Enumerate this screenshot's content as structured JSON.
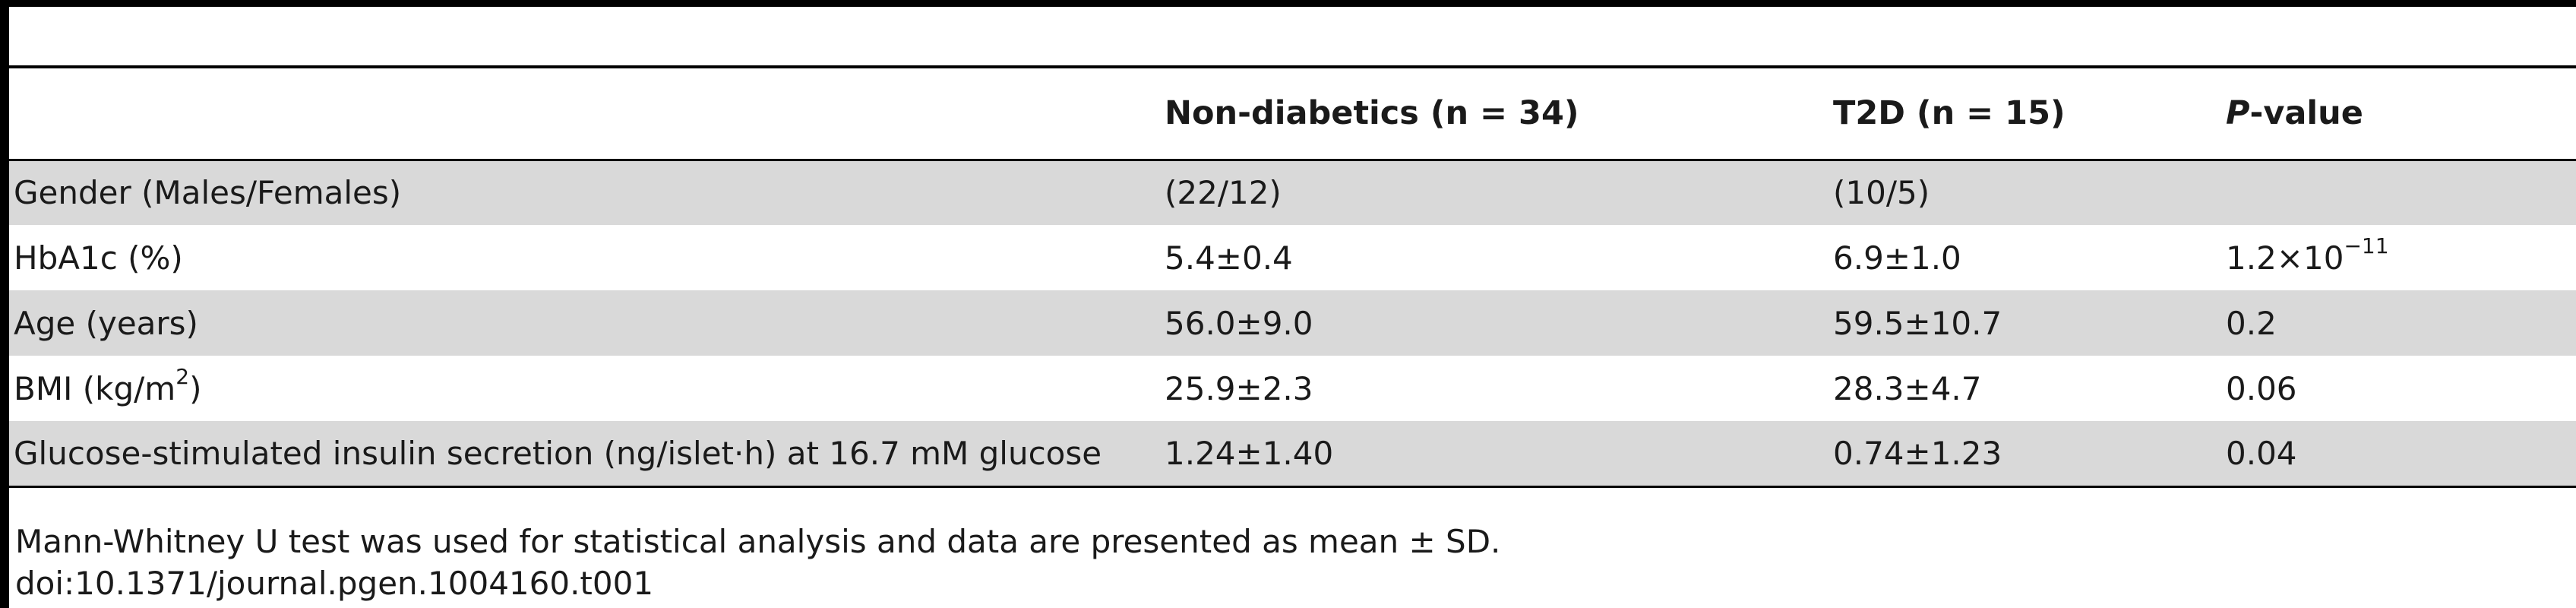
{
  "table": {
    "headers": {
      "characteristic": "",
      "non_diabetics": "Non-diabetics (n = 34)",
      "t2d": "T2D (n = 15)",
      "p_italic": "P",
      "p_rest": "-value"
    },
    "rows": [
      {
        "label": "Gender (Males/Females)",
        "label_sup": "",
        "label_after": "",
        "non_diabetics": "(22/12)",
        "t2d": "(10/5)",
        "p_value": "",
        "p_sup": ""
      },
      {
        "label": "HbA1c (%)",
        "label_sup": "",
        "label_after": "",
        "non_diabetics": "5.4±0.4",
        "t2d": "6.9±1.0",
        "p_value": "1.2×10",
        "p_sup": "−11"
      },
      {
        "label": "Age (years)",
        "label_sup": "",
        "label_after": "",
        "non_diabetics": "56.0±9.0",
        "t2d": "59.5±10.7",
        "p_value": "0.2",
        "p_sup": ""
      },
      {
        "label": "BMI (kg/m",
        "label_sup": "2",
        "label_after": ")",
        "non_diabetics": "25.9±2.3",
        "t2d": "28.3±4.7",
        "p_value": "0.06",
        "p_sup": ""
      },
      {
        "label": "Glucose-stimulated insulin secretion (ng/islet·h) at 16.7 mM glucose",
        "label_sup": "",
        "label_after": "",
        "non_diabetics": "1.24±1.40",
        "t2d": "0.74±1.23",
        "p_value": "0.04",
        "p_sup": ""
      }
    ]
  },
  "footnote": "Mann-Whitney U test was used for statistical analysis and data are presented as mean ± SD.",
  "doi": "doi:10.1371/journal.pgen.1004160.t001"
}
